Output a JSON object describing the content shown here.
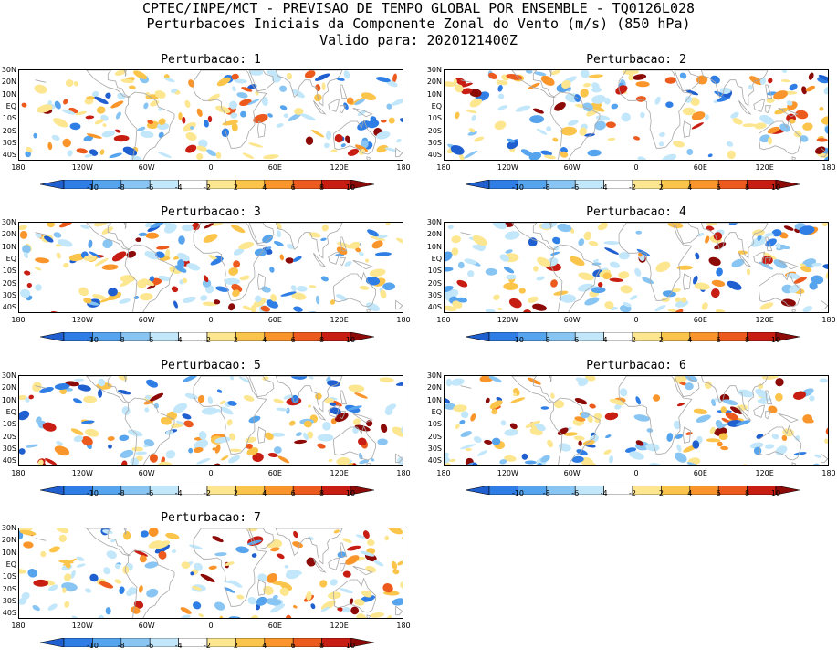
{
  "header": {
    "line1": "CPTEC/INPE/MCT - PREVISAO DE TEMPO GLOBAL POR ENSEMBLE - TQ0126L028",
    "line2": "Perturbacoes Iniciais da Componente Zonal do Vento (m/s) (850 hPa)",
    "line3": "Valido para: 2020121400Z"
  },
  "panels": [
    {
      "title": "Perturbacao: 1"
    },
    {
      "title": "Perturbacao: 2"
    },
    {
      "title": "Perturbacao: 3"
    },
    {
      "title": "Perturbacao: 4"
    },
    {
      "title": "Perturbacao: 5"
    },
    {
      "title": "Perturbacao: 6"
    },
    {
      "title": "Perturbacao: 7"
    }
  ],
  "lat_labels": [
    "30N",
    "20N",
    "10N",
    "EQ",
    "10S",
    "20S",
    "30S",
    "40S"
  ],
  "lon_labels": [
    "180",
    "120W",
    "60W",
    "0",
    "60E",
    "120E",
    "180"
  ],
  "colorbar": {
    "labels": [
      "-10",
      "-8",
      "-6",
      "-4",
      "-2",
      "2",
      "4",
      "6",
      "8",
      "10"
    ],
    "colors": [
      "#1f5fd0",
      "#2f7ee6",
      "#56a3ee",
      "#89c5f3",
      "#c3e7fa",
      "#ffffff",
      "#fde690",
      "#fbc44b",
      "#f9952a",
      "#ec5a1d",
      "#c81d12",
      "#8c0a08"
    ]
  }
}
